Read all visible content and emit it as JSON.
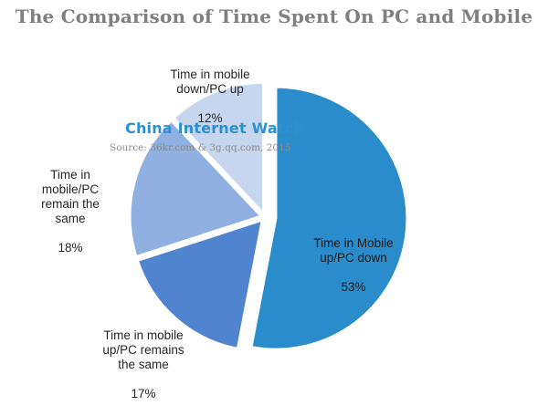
{
  "chart_data": {
    "type": "pie",
    "title": "The Comparison of Time Spent On PC and Mobile",
    "slices": [
      {
        "label": "Time in Mobile\nup/PC down",
        "value": 53,
        "value_label": "53%",
        "color": "#2a8ccb"
      },
      {
        "label": "Time in mobile\nup/PC remains\nthe same",
        "value": 17,
        "value_label": "17%",
        "color": "#5184cf"
      },
      {
        "label": "Time in\nmobile/PC\nremain the\nsame",
        "value": 18,
        "value_label": "18%",
        "color": "#8fb0e0"
      },
      {
        "label": "Time in mobile\ndown/PC up",
        "value": 12,
        "value_label": "12%",
        "color": "#c5d6ee"
      }
    ],
    "start_angle": "12 o'clock",
    "direction": "clockwise"
  },
  "watermark": {
    "brand": "China Internet Watch",
    "source": "Source: 36kr.com & 3g.qq.com, 2015"
  }
}
